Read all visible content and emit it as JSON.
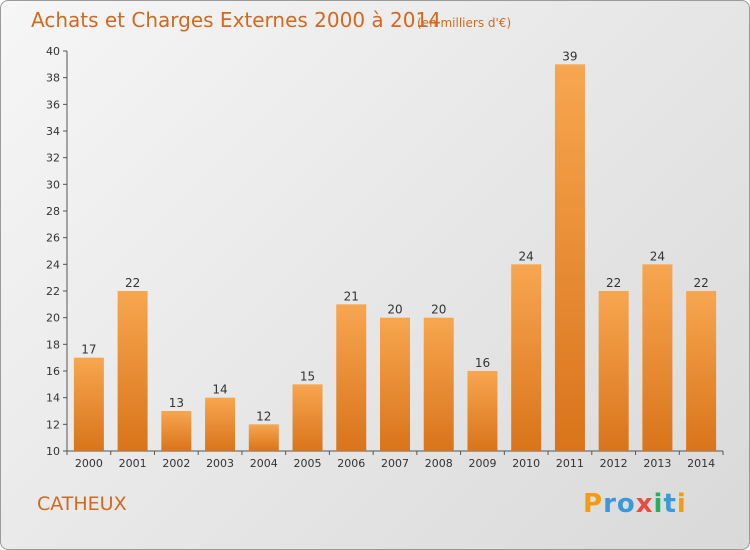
{
  "chart_data": {
    "type": "bar",
    "title": "Achats et Charges Externes 2000 à 2014",
    "subtitle": "(en milliers d'€)",
    "categories": [
      "2000",
      "2001",
      "2002",
      "2003",
      "2004",
      "2005",
      "2006",
      "2007",
      "2008",
      "2009",
      "2010",
      "2011",
      "2012",
      "2013",
      "2014"
    ],
    "values": [
      17,
      22,
      13,
      14,
      12,
      15,
      21,
      20,
      20,
      16,
      24,
      39,
      22,
      24,
      22
    ],
    "ylim": [
      10,
      40
    ],
    "yticks": [
      10,
      12,
      14,
      16,
      18,
      20,
      22,
      24,
      26,
      28,
      30,
      32,
      34,
      36,
      38,
      40
    ],
    "grid": false,
    "bar_color": "#f5a04a",
    "bar_color_dark": "#d9741a"
  },
  "place": "CATHEUX",
  "logo": {
    "text": "Proxiti",
    "letters": [
      {
        "ch": "P",
        "color": "#f39c12"
      },
      {
        "ch": "r",
        "color": "#3a9ad9"
      },
      {
        "ch": "o",
        "color": "#3a9ad9"
      },
      {
        "ch": "x",
        "color": "#e74c3c"
      },
      {
        "ch": "i",
        "color": "#27ae60"
      },
      {
        "ch": "t",
        "color": "#3a9ad9"
      },
      {
        "ch": "i",
        "color": "#f39c12"
      }
    ]
  }
}
